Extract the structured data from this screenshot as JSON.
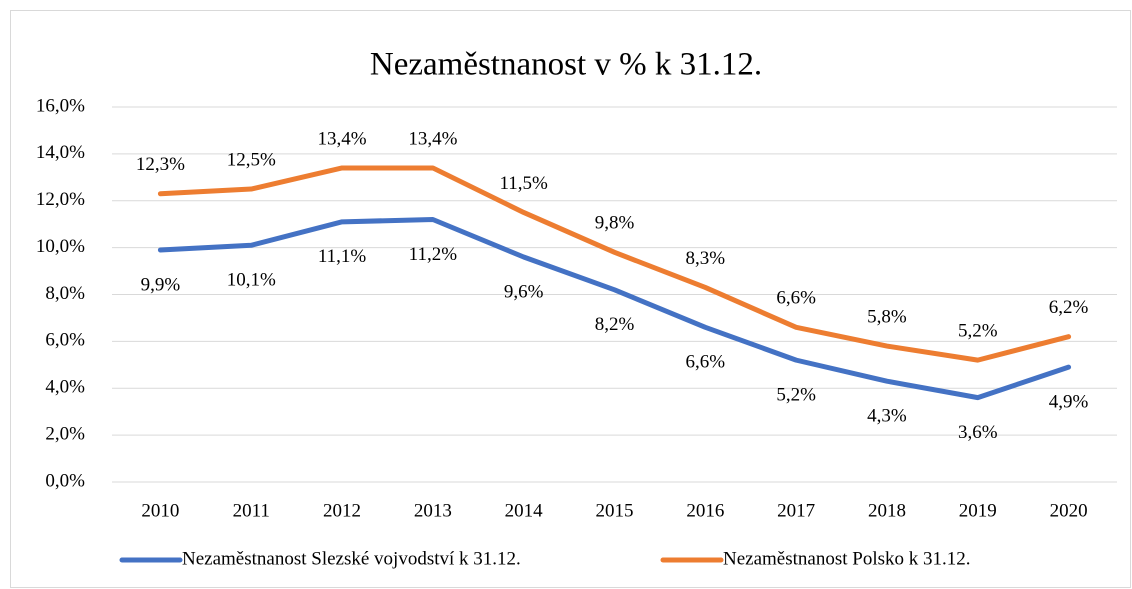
{
  "chart_data": {
    "type": "line",
    "title": "Nezaměstnanost v % k 31.12.",
    "categories": [
      "2010",
      "2011",
      "2012",
      "2013",
      "2014",
      "2015",
      "2016",
      "2017",
      "2018",
      "2019",
      "2020"
    ],
    "series": [
      {
        "name": "Nezaměstnanost Slezské vojvodství k 31.12.",
        "color": "#4472c4",
        "values": [
          9.9,
          10.1,
          11.1,
          11.2,
          9.6,
          8.2,
          6.6,
          5.2,
          4.3,
          3.6,
          4.9
        ],
        "value_labels": [
          "9,9%",
          "10,1%",
          "11,1%",
          "11,2%",
          "9,6%",
          "8,2%",
          "6,6%",
          "5,2%",
          "4,3%",
          "3,6%",
          "4,9%"
        ]
      },
      {
        "name": "Nezaměstnanost Polsko k 31.12.",
        "color": "#ed7d31",
        "values": [
          12.3,
          12.5,
          13.4,
          13.4,
          11.5,
          9.8,
          8.3,
          6.6,
          5.8,
          5.2,
          6.2
        ],
        "value_labels": [
          "12,3%",
          "12,5%",
          "13,4%",
          "13,4%",
          "11,5%",
          "9,8%",
          "8,3%",
          "6,6%",
          "5,8%",
          "5,2%",
          "6,2%"
        ]
      }
    ],
    "ylim": [
      0,
      16
    ],
    "yticks": [
      {
        "value": 0,
        "label": "0,0%"
      },
      {
        "value": 2,
        "label": "2,0%"
      },
      {
        "value": 4,
        "label": "4,0%"
      },
      {
        "value": 6,
        "label": "6,0%"
      },
      {
        "value": 8,
        "label": "8,0%"
      },
      {
        "value": 10,
        "label": "10,0%"
      },
      {
        "value": 12,
        "label": "12,0%"
      },
      {
        "value": 14,
        "label": "14,0%"
      },
      {
        "value": 16,
        "label": "16,0%"
      }
    ],
    "grid": true,
    "legend": "bottom"
  }
}
